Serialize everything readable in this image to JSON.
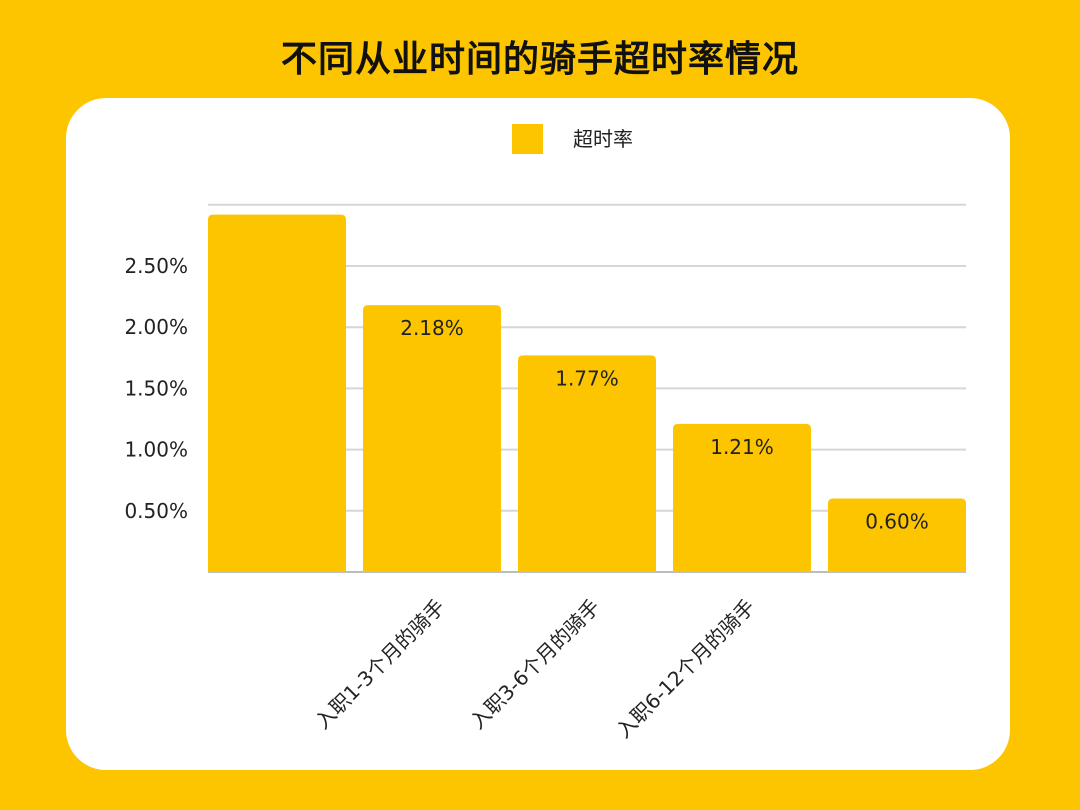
{
  "title": "不同从业时间的骑手超时率情况",
  "colors": {
    "background": "#FCC500",
    "bar": "#FCC500",
    "card": "#FFFFFF",
    "grid": "#D6D6D6",
    "text": "#222222"
  },
  "chart_data": {
    "type": "bar",
    "legend": {
      "label": "超时率",
      "position": "top-center"
    },
    "categories": [
      "",
      "入职1-3个月的骑手",
      "入职3-6个月的骑手",
      "入职6-12个月的骑手",
      ""
    ],
    "series": [
      {
        "name": "超时率",
        "values": [
          2.92,
          2.18,
          1.77,
          1.21,
          0.6
        ]
      }
    ],
    "data_labels": [
      "",
      "2.18%",
      "1.77%",
      "1.21%",
      "0.60%"
    ],
    "yticks": [
      {
        "value": 0.5,
        "label": "0.50%"
      },
      {
        "value": 1.0,
        "label": "1.00%"
      },
      {
        "value": 1.5,
        "label": "1.50%"
      },
      {
        "value": 2.0,
        "label": "2.00%"
      },
      {
        "value": 2.5,
        "label": "2.50%"
      }
    ],
    "ylim": [
      0,
      3.0
    ],
    "grid": true
  }
}
